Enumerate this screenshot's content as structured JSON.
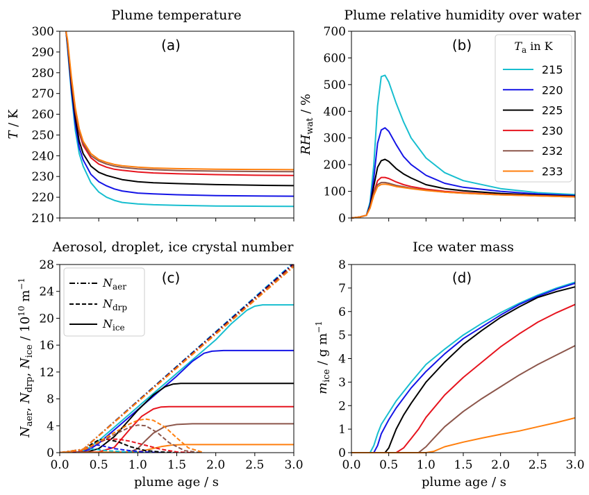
{
  "chart_data": [
    {
      "panel": "(a)",
      "type": "line",
      "title": "Plume temperature",
      "ylabel": "T / K",
      "xlabel": "",
      "xlim": [
        0,
        3
      ],
      "ylim": [
        210,
        300
      ],
      "yticks": [
        210,
        220,
        230,
        240,
        250,
        260,
        270,
        280,
        290,
        300
      ],
      "x": [
        0.08,
        0.1,
        0.15,
        0.2,
        0.25,
        0.3,
        0.4,
        0.5,
        0.6,
        0.7,
        0.8,
        1.0,
        1.2,
        1.5,
        2.0,
        2.5,
        3.0
      ],
      "series": [
        {
          "name": "215",
          "color": "#17becf",
          "values": [
            300,
            292,
            270,
            252,
            241,
            235,
            227,
            222.5,
            220,
            218.5,
            217.5,
            216.8,
            216.4,
            216.1,
            215.8,
            215.7,
            215.6
          ]
        },
        {
          "name": "220",
          "color": "#1414e6",
          "values": [
            300,
            293,
            272,
            255,
            244,
            238,
            231,
            227.5,
            225.5,
            224,
            223,
            222,
            221.6,
            221.2,
            220.8,
            220.6,
            220.5
          ]
        },
        {
          "name": "225",
          "color": "#000000",
          "values": [
            300,
            294,
            274,
            258,
            247,
            241,
            235,
            232,
            230.5,
            229.5,
            228.5,
            227.5,
            227,
            226.6,
            226.1,
            225.8,
            225.6
          ]
        },
        {
          "name": "230",
          "color": "#e6141e",
          "values": [
            300,
            295,
            276,
            261,
            251,
            245,
            239,
            236,
            234.5,
            233.5,
            233,
            232.2,
            231.7,
            231.3,
            230.9,
            230.6,
            230.5
          ]
        },
        {
          "name": "232",
          "color": "#8c564b",
          "values": [
            300,
            295,
            277,
            262,
            252,
            246,
            240,
            237.5,
            236,
            235,
            234.4,
            233.7,
            233.3,
            232.9,
            232.6,
            232.4,
            232.3
          ]
        },
        {
          "name": "233",
          "color": "#ff7f0e",
          "values": [
            300,
            296,
            278,
            263,
            253,
            247,
            241,
            238.2,
            236.8,
            235.8,
            235.2,
            234.5,
            234.1,
            233.8,
            233.5,
            233.4,
            233.3
          ]
        }
      ]
    },
    {
      "panel": "(b)",
      "type": "line",
      "title": "Plume relative humidity over water",
      "ylabel": "RH_wat / %",
      "xlabel": "",
      "xlim": [
        0,
        3
      ],
      "ylim": [
        0,
        700
      ],
      "yticks": [
        0,
        100,
        200,
        300,
        400,
        500,
        600,
        700
      ],
      "legend": {
        "title": "T_a in K",
        "location": "top-right",
        "entries": [
          "215",
          "220",
          "225",
          "230",
          "232",
          "233"
        ]
      },
      "x": [
        0.0,
        0.1,
        0.2,
        0.25,
        0.3,
        0.35,
        0.4,
        0.45,
        0.5,
        0.6,
        0.7,
        0.8,
        1.0,
        1.25,
        1.5,
        2.0,
        2.5,
        3.0
      ],
      "series": [
        {
          "name": "215",
          "color": "#17becf",
          "values": [
            0,
            3,
            10,
            60,
            200,
            420,
            530,
            535,
            510,
            430,
            360,
            300,
            225,
            170,
            140,
            110,
            95,
            88
          ]
        },
        {
          "name": "220",
          "color": "#1414e6",
          "values": [
            0,
            3,
            10,
            50,
            150,
            280,
            330,
            338,
            325,
            275,
            230,
            200,
            160,
            130,
            115,
            100,
            90,
            84
          ]
        },
        {
          "name": "225",
          "color": "#000000",
          "values": [
            0,
            3,
            10,
            45,
            120,
            190,
            215,
            220,
            212,
            185,
            165,
            150,
            125,
            110,
            102,
            92,
            86,
            82
          ]
        },
        {
          "name": "230",
          "color": "#e6141e",
          "values": [
            0,
            3,
            10,
            40,
            95,
            140,
            152,
            152,
            148,
            135,
            125,
            118,
            108,
            100,
            95,
            88,
            84,
            80
          ]
        },
        {
          "name": "232",
          "color": "#8c564b",
          "values": [
            0,
            3,
            10,
            38,
            90,
            125,
            133,
            133,
            130,
            122,
            117,
            112,
            104,
            97,
            93,
            87,
            83,
            79
          ]
        },
        {
          "name": "233",
          "color": "#ff7f0e",
          "values": [
            0,
            3,
            10,
            37,
            85,
            118,
            126,
            127,
            125,
            118,
            114,
            110,
            103,
            97,
            93,
            87,
            83,
            79
          ]
        }
      ]
    },
    {
      "panel": "(c)",
      "type": "line",
      "title": "Aerosol, droplet, ice crystal number",
      "ylabel": "N_aer, N_drp, N_ice / 10^10 m^-1",
      "xlabel": "plume age / s",
      "xlim": [
        0,
        3
      ],
      "ylim": [
        0,
        28
      ],
      "xticks": [
        0.0,
        0.5,
        1.0,
        1.5,
        2.0,
        2.5,
        3.0
      ],
      "yticks": [
        0,
        4,
        8,
        12,
        16,
        20,
        24,
        28
      ],
      "legend": {
        "location": "top-left",
        "entries": [
          {
            "label": "N_aer",
            "style": "dash-dot"
          },
          {
            "label": "N_drp",
            "style": "dashed"
          },
          {
            "label": "N_ice",
            "style": "solid"
          }
        ]
      },
      "series": [
        {
          "name": "215",
          "color": "#17becf",
          "aer": {
            "x": [
              0.0,
              0.3,
              3.0
            ],
            "values": [
              0,
              0.5,
              28
            ]
          },
          "drp": {
            "x": [
              0.0,
              0.25,
              0.35,
              0.45,
              0.6,
              0.8,
              1.0,
              1.2
            ],
            "values": [
              0,
              0.2,
              0.6,
              0.5,
              0.3,
              0.15,
              0.05,
              0
            ]
          },
          "ice": {
            "x": [
              0.0,
              0.25,
              0.35,
              0.5,
              1.0,
              1.5,
              2.0,
              2.2,
              2.4,
              2.5,
              2.6,
              3.0
            ],
            "values": [
              0,
              0.1,
              0.5,
              1.8,
              6.8,
              11.8,
              16.8,
              19.2,
              21.2,
              21.8,
              22,
              22
            ]
          }
        },
        {
          "name": "220",
          "color": "#1414e6",
          "aer": {
            "x": [
              0.0,
              0.3,
              3.0
            ],
            "values": [
              0,
              0.5,
              28
            ]
          },
          "drp": {
            "x": [
              0.0,
              0.25,
              0.35,
              0.45,
              0.55,
              0.7,
              0.9,
              1.1,
              1.3
            ],
            "values": [
              0,
              0.2,
              0.8,
              1.2,
              1.0,
              0.6,
              0.3,
              0.1,
              0
            ]
          },
          "ice": {
            "x": [
              0.0,
              0.3,
              0.4,
              0.5,
              1.0,
              1.5,
              1.7,
              1.85,
              1.95,
              2.1,
              3.0
            ],
            "values": [
              0,
              0.1,
              0.6,
              1.4,
              6.4,
              11.4,
              13.6,
              14.8,
              15.1,
              15.2,
              15.2
            ]
          }
        },
        {
          "name": "225",
          "color": "#000000",
          "aer": {
            "x": [
              0.0,
              0.3,
              3.0
            ],
            "values": [
              0,
              0.5,
              28
            ]
          },
          "drp": {
            "x": [
              0.0,
              0.3,
              0.4,
              0.5,
              0.6,
              0.75,
              0.9,
              1.1,
              1.3,
              1.5
            ],
            "values": [
              0,
              0.3,
              1.2,
              1.9,
              2.0,
              1.6,
              0.9,
              0.3,
              0.1,
              0
            ]
          },
          "ice": {
            "x": [
              0.0,
              0.35,
              0.5,
              0.7,
              1.0,
              1.2,
              1.35,
              1.45,
              1.55,
              3.0
            ],
            "values": [
              0,
              0.1,
              0.6,
              2.4,
              6.3,
              8.6,
              9.8,
              10.2,
              10.3,
              10.3
            ]
          }
        },
        {
          "name": "230",
          "color": "#e6141e",
          "aer": {
            "x": [
              0.0,
              0.3,
              3.0
            ],
            "values": [
              0,
              0.5,
              28
            ]
          },
          "drp": {
            "x": [
              0.0,
              0.3,
              0.45,
              0.6,
              0.75,
              0.9,
              1.1,
              1.3,
              1.5,
              1.7
            ],
            "values": [
              0,
              0.3,
              1.2,
              2.0,
              2.0,
              1.7,
              1.1,
              0.5,
              0.1,
              0
            ]
          },
          "ice": {
            "x": [
              0.0,
              0.5,
              0.7,
              0.9,
              1.05,
              1.2,
              1.3,
              1.4,
              3.0
            ],
            "values": [
              0,
              0.1,
              0.8,
              3.5,
              5.4,
              6.5,
              6.8,
              6.85,
              6.85
            ]
          }
        },
        {
          "name": "232",
          "color": "#8c564b",
          "aer": {
            "x": [
              0.0,
              0.3,
              3.0
            ],
            "values": [
              0,
              0.5,
              28
            ]
          },
          "drp": {
            "x": [
              0.0,
              0.3,
              0.5,
              0.7,
              0.9,
              1.0,
              1.1,
              1.25,
              1.4,
              1.6,
              1.8
            ],
            "values": [
              0,
              0.4,
              1.5,
              2.7,
              3.8,
              4.1,
              4.0,
              3.0,
              1.5,
              0.3,
              0
            ]
          },
          "ice": {
            "x": [
              0.0,
              0.9,
              1.0,
              1.1,
              1.2,
              1.35,
              1.5,
              1.7,
              3.0
            ],
            "values": [
              0,
              0.1,
              0.6,
              1.8,
              2.9,
              3.9,
              4.2,
              4.3,
              4.3
            ]
          }
        },
        {
          "name": "233",
          "color": "#ff7f0e",
          "aer": {
            "x": [
              0.0,
              0.3,
              3.0
            ],
            "values": [
              0,
              0.5,
              28
            ]
          },
          "drp": {
            "x": [
              0.0,
              0.3,
              0.5,
              0.7,
              0.9,
              1.0,
              1.1,
              1.2,
              1.35,
              1.5,
              1.65,
              1.85
            ],
            "values": [
              0,
              0.4,
              1.6,
              3.0,
              4.3,
              4.8,
              5.0,
              4.8,
              3.8,
              2.2,
              0.7,
              0
            ]
          },
          "ice": {
            "x": [
              0.0,
              1.0,
              1.15,
              1.3,
              1.45,
              1.6,
              3.0
            ],
            "values": [
              0,
              0.1,
              0.5,
              0.9,
              1.15,
              1.2,
              1.2
            ]
          }
        }
      ]
    },
    {
      "panel": "(d)",
      "type": "line",
      "title": "Ice water mass",
      "ylabel": "m_ice / g m^-1",
      "xlabel": "plume age / s",
      "xlim": [
        0,
        3
      ],
      "ylim": [
        0,
        8
      ],
      "xticks": [
        0.0,
        0.5,
        1.0,
        1.5,
        2.0,
        2.5,
        3.0
      ],
      "yticks": [
        0,
        1,
        2,
        3,
        4,
        5,
        6,
        7,
        8
      ],
      "series": [
        {
          "name": "215",
          "color": "#17becf",
          "x": [
            0.25,
            0.3,
            0.35,
            0.4,
            0.5,
            0.6,
            0.8,
            1.0,
            1.25,
            1.5,
            1.75,
            2.0,
            2.25,
            2.5,
            2.75,
            3.0
          ],
          "values": [
            0,
            0.3,
            0.8,
            1.2,
            1.7,
            2.2,
            3.0,
            3.75,
            4.4,
            5.0,
            5.5,
            5.95,
            6.35,
            6.7,
            7.0,
            7.25
          ]
        },
        {
          "name": "220",
          "color": "#1414e6",
          "x": [
            0.3,
            0.35,
            0.4,
            0.5,
            0.6,
            0.8,
            1.0,
            1.25,
            1.5,
            1.75,
            2.0,
            2.25,
            2.5,
            2.75,
            3.0
          ],
          "values": [
            0,
            0.3,
            0.8,
            1.4,
            1.9,
            2.75,
            3.45,
            4.2,
            4.85,
            5.35,
            5.85,
            6.3,
            6.65,
            6.95,
            7.2
          ]
        },
        {
          "name": "225",
          "color": "#000000",
          "x": [
            0.45,
            0.5,
            0.55,
            0.6,
            0.7,
            0.8,
            1.0,
            1.25,
            1.5,
            1.75,
            2.0,
            2.25,
            2.5,
            2.75,
            3.0
          ],
          "values": [
            0,
            0.2,
            0.6,
            1.0,
            1.6,
            2.1,
            3.0,
            3.85,
            4.6,
            5.2,
            5.75,
            6.2,
            6.6,
            6.85,
            7.05
          ]
        },
        {
          "name": "230",
          "color": "#e6141e",
          "x": [
            0.6,
            0.7,
            0.8,
            0.9,
            1.0,
            1.25,
            1.5,
            1.75,
            2.0,
            2.25,
            2.5,
            2.75,
            3.0
          ],
          "values": [
            0,
            0.2,
            0.6,
            1.0,
            1.5,
            2.45,
            3.2,
            3.85,
            4.5,
            5.05,
            5.55,
            5.95,
            6.3
          ]
        },
        {
          "name": "232",
          "color": "#8c564b",
          "x": [
            0.9,
            1.0,
            1.1,
            1.25,
            1.5,
            1.75,
            2.0,
            2.25,
            2.5,
            2.75,
            3.0
          ],
          "values": [
            0,
            0.25,
            0.6,
            1.1,
            1.75,
            2.3,
            2.8,
            3.3,
            3.75,
            4.15,
            4.55
          ]
        },
        {
          "name": "233",
          "color": "#ff7f0e",
          "x": [
            1.0,
            1.1,
            1.25,
            1.5,
            1.75,
            2.0,
            2.25,
            2.5,
            2.75,
            3.0
          ],
          "values": [
            0,
            0.05,
            0.25,
            0.45,
            0.62,
            0.78,
            0.92,
            1.1,
            1.28,
            1.48
          ]
        }
      ]
    }
  ]
}
